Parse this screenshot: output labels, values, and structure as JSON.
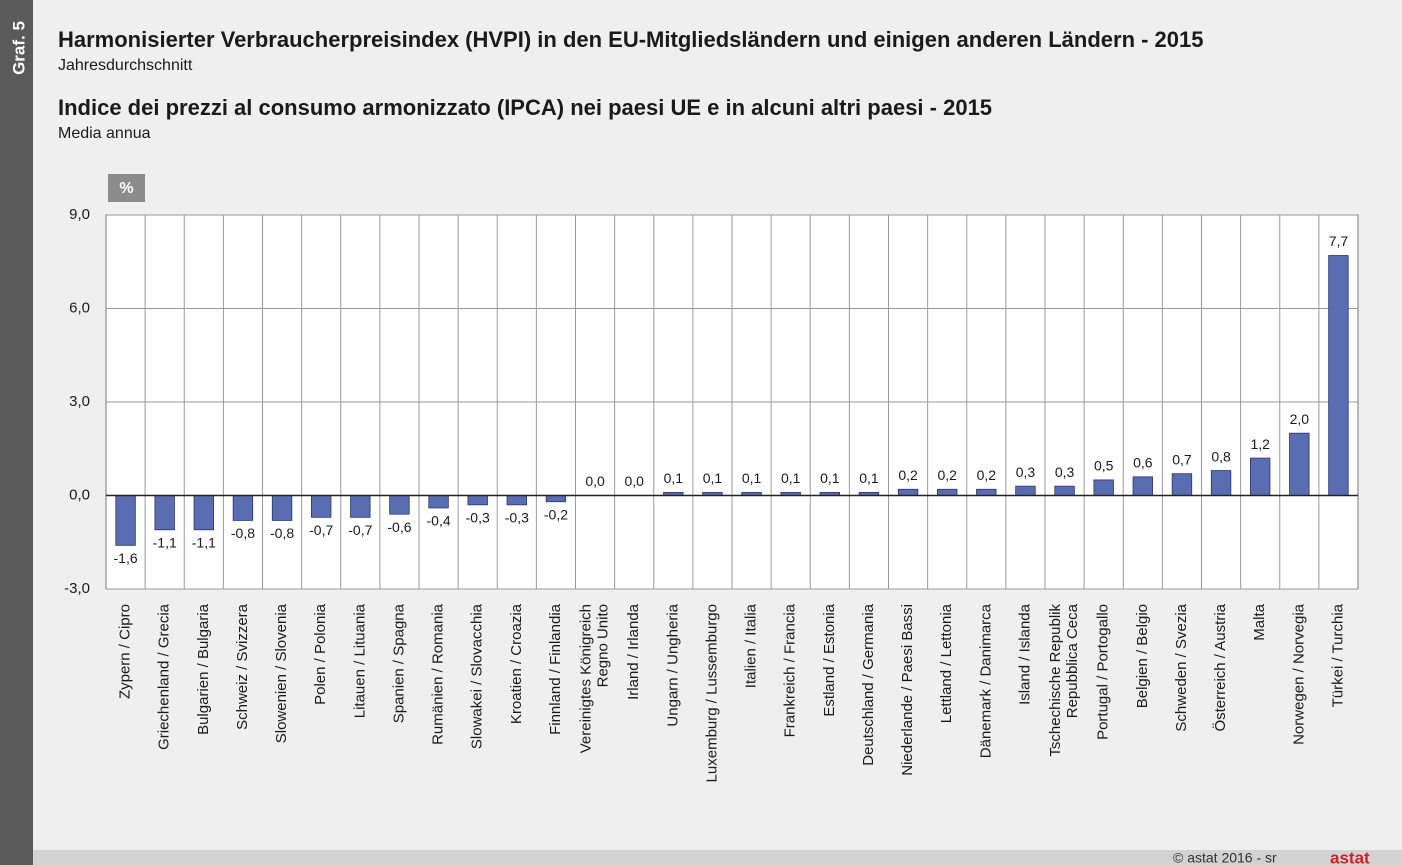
{
  "graph_label": "Graf. 5",
  "chart_data": {
    "type": "bar",
    "title": "Harmonisierter Verbraucherpreisindex (HVPI) in den EU-Mitgliedsländern und einigen anderen Ländern - 2015",
    "subtitle": "Jahresdurchschnitt",
    "title_2": "Indice dei prezzi al consumo armonizzato (IPCA) nei paesi UE e in alcuni altri paesi - 2015",
    "subtitle_2": "Media annua",
    "unit": "%",
    "categories": [
      "Zypern / Cipro",
      "Griechenland / Grecia",
      "Bulgarien / Bulgaria",
      "Schweiz / Svizzera",
      "Slowenien / Slovenia",
      "Polen / Polonia",
      "Litauen / Lituania",
      "Spanien / Spagna",
      "Rumänien / Romania",
      "Slowakei / Slovacchia",
      "Kroatien / Croazia",
      "Finnland / Finlandia",
      "Vereinigtes Königreich\nRegno Unito",
      "Irland / Irlanda",
      "Ungarn / Ungheria",
      "Luxemburg / Lussemburgo",
      "Italien / Italia",
      "Frankreich / Francia",
      "Estland / Estonia",
      "Deutschland / Germania",
      "Niederlande / Paesi Bassi",
      "Lettland / Lettonia",
      "Dänemark / Danimarca",
      "Island / Islanda",
      "Tschechische Republik\nRepubblica Ceca",
      "Portugal / Portogallo",
      "Belgien / Belgio",
      "Schweden / Svezia",
      "Österreich / Austria",
      "Malta",
      "Norwegen / Norvegia",
      "Türkei / Turchia"
    ],
    "values": [
      -1.6,
      -1.1,
      -1.1,
      -0.8,
      -0.8,
      -0.7,
      -0.7,
      -0.6,
      -0.4,
      -0.3,
      -0.3,
      -0.2,
      0.0,
      0.0,
      0.1,
      0.1,
      0.1,
      0.1,
      0.1,
      0.1,
      0.2,
      0.2,
      0.2,
      0.3,
      0.3,
      0.5,
      0.6,
      0.7,
      0.8,
      1.2,
      2.0,
      7.7
    ],
    "value_labels": [
      "-1,6",
      "-1,1",
      "-1,1",
      "-0,8",
      "-0,8",
      "-0,7",
      "-0,7",
      "-0,6",
      "-0,4",
      "-0,3",
      "-0,3",
      "-0,2",
      "0,0",
      "0,0",
      "0,1",
      "0,1",
      "0,1",
      "0,1",
      "0,1",
      "0,1",
      "0,2",
      "0,2",
      "0,2",
      "0,3",
      "0,3",
      "0,5",
      "0,6",
      "0,7",
      "0,8",
      "1,2",
      "2,0",
      "7,7"
    ],
    "color": "#5a6db3",
    "ylim": [
      -3,
      9
    ],
    "yticks": [
      {
        "value": -3,
        "label": "-3,0"
      },
      {
        "value": 0,
        "label": "0,0"
      },
      {
        "value": 3,
        "label": "3,0"
      },
      {
        "value": 6,
        "label": "6,0"
      },
      {
        "value": 9,
        "label": "9,0"
      }
    ],
    "grid": true
  },
  "footer": {
    "copyright": "© astat 2016 - sr",
    "logo": "astat"
  }
}
